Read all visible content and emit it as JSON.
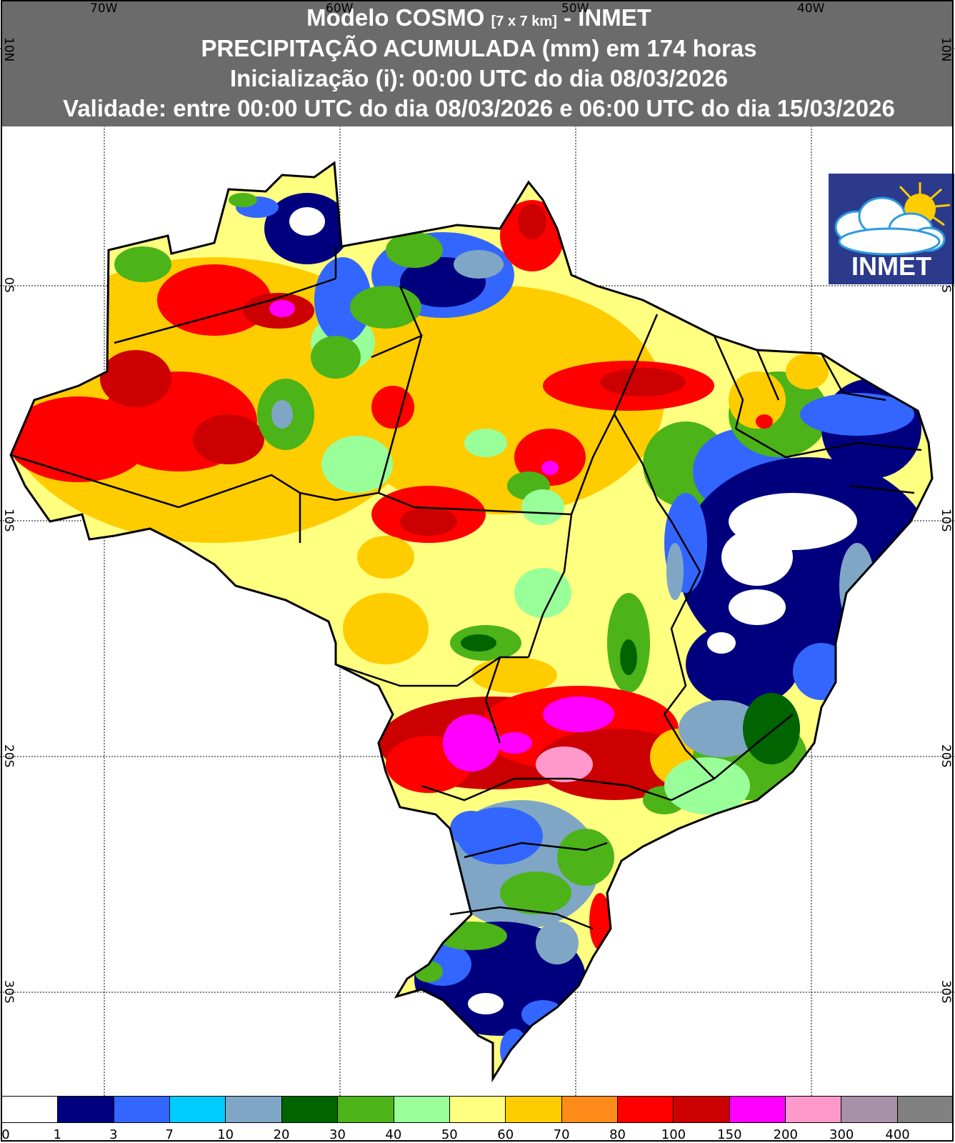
{
  "header": {
    "model": "Modelo COSMO",
    "resolution": "[7 x 7 km]",
    "agency_suffix": "- INMET",
    "line2": "PRECIPITAÇÃO ACUMULADA (mm) em 174 horas",
    "line3": "Inicialização (i): 00:00 UTC do dia 08/03/2026",
    "line4": "Validade: entre 00:00 UTC do dia 08/03/2026 e 06:00 UTC do dia 15/03/2026"
  },
  "axes": {
    "longitudes": [
      "70W",
      "60W",
      "50W",
      "40W"
    ],
    "latitudes": [
      "10N",
      "0S",
      "10S",
      "20S",
      "30S"
    ]
  },
  "logo": {
    "text": "INMET"
  },
  "legend": {
    "labels": [
      "0",
      "1",
      "3",
      "7",
      "10",
      "20",
      "30",
      "40",
      "50",
      "60",
      "70",
      "80",
      "100",
      "150",
      "200",
      "300",
      "400"
    ],
    "colors": [
      "#ffffff",
      "#00007f",
      "#3366ff",
      "#00ccff",
      "#7fa6c4",
      "#006400",
      "#4cb318",
      "#99ff99",
      "#ffff80",
      "#ffcc00",
      "#ff8c1a",
      "#ff0000",
      "#cc0000",
      "#ff00ff",
      "#ff99cc",
      "#a890a8",
      "#808080"
    ]
  },
  "regions": {
    "north_amazon": "#ffcc00",
    "northwest_wet": "#ff0000",
    "central_west": "#ffff80",
    "northeast_dry": "#00007f",
    "northeast_none": "#ffffff",
    "southeast_heavy": "#cc0000",
    "southeast_extreme": "#ff00ff",
    "south_moderate": "#7fa6c4",
    "south_dry": "#00007f",
    "coast_green": "#4cb318",
    "amapa_north": "#ff0000",
    "para_north": "#3366ff",
    "roraima": "#00007f"
  }
}
